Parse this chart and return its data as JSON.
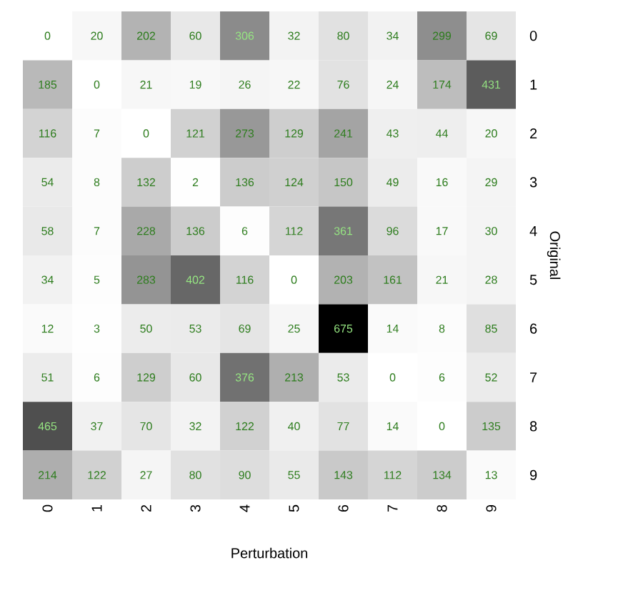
{
  "chart_data": {
    "type": "heatmap",
    "xlabel": "Perturbation",
    "ylabel": "Original",
    "data_labels": true,
    "categories": [
      "0",
      "1",
      "2",
      "3",
      "4",
      "5",
      "6",
      "7",
      "8",
      "9"
    ],
    "y_categories": [
      "0",
      "1",
      "2",
      "3",
      "4",
      "5",
      "6",
      "7",
      "8",
      "9"
    ],
    "cells": [
      [
        0,
        20,
        202,
        60,
        306,
        32,
        80,
        34,
        299,
        69
      ],
      [
        185,
        0,
        21,
        19,
        26,
        22,
        76,
        24,
        174,
        431
      ],
      [
        116,
        7,
        0,
        121,
        273,
        129,
        241,
        43,
        44,
        20
      ],
      [
        54,
        8,
        132,
        2,
        136,
        124,
        150,
        49,
        16,
        29
      ],
      [
        58,
        7,
        228,
        136,
        6,
        112,
        361,
        96,
        17,
        30
      ],
      [
        34,
        5,
        283,
        402,
        116,
        0,
        203,
        161,
        21,
        28
      ],
      [
        12,
        3,
        50,
        53,
        69,
        25,
        675,
        14,
        8,
        85
      ],
      [
        51,
        6,
        129,
        60,
        376,
        213,
        53,
        0,
        6,
        52
      ],
      [
        465,
        37,
        70,
        32,
        122,
        40,
        77,
        14,
        0,
        135
      ],
      [
        214,
        122,
        27,
        80,
        90,
        55,
        143,
        112,
        134,
        13
      ]
    ]
  }
}
